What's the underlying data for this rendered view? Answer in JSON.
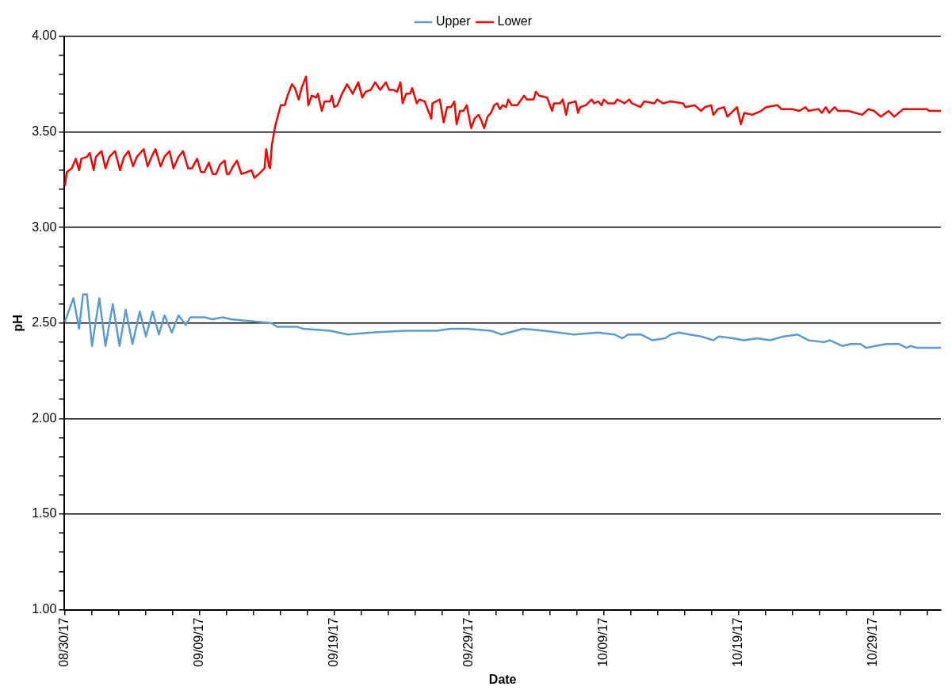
{
  "chart_data": {
    "type": "line",
    "xlabel": "Date",
    "ylabel": "pH",
    "legend": "top",
    "grid": "y",
    "marker": "none",
    "line_style": "solid",
    "xlim": [
      "--08-30",
      "--11-03"
    ],
    "ylim": [
      1,
      4
    ],
    "xticks": [
      {
        "value": "--08-30",
        "label": "08/30/17"
      },
      {
        "value": "--09-01",
        "label": null
      },
      {
        "value": "--09-03",
        "label": null
      },
      {
        "value": "--09-05",
        "label": null
      },
      {
        "value": "--09-07",
        "label": null
      },
      {
        "value": "--09-09",
        "label": "09/09/17"
      },
      {
        "value": "--09-11",
        "label": null
      },
      {
        "value": "--09-13",
        "label": null
      },
      {
        "value": "--09-15",
        "label": null
      },
      {
        "value": "--09-17",
        "label": null
      },
      {
        "value": "--09-19",
        "label": "09/19/17"
      },
      {
        "value": "--09-21",
        "label": null
      },
      {
        "value": "--09-23",
        "label": null
      },
      {
        "value": "--09-25",
        "label": null
      },
      {
        "value": "--09-27",
        "label": null
      },
      {
        "value": "--09-29",
        "label": "09/29/17"
      },
      {
        "value": "--10-01",
        "label": null
      },
      {
        "value": "--10-03",
        "label": null
      },
      {
        "value": "--10-05",
        "label": null
      },
      {
        "value": "--10-07",
        "label": null
      },
      {
        "value": "--10-09",
        "label": "10/09/17"
      },
      {
        "value": "--10-11",
        "label": null
      },
      {
        "value": "--10-13",
        "label": null
      },
      {
        "value": "--10-15",
        "label": null
      },
      {
        "value": "--10-17",
        "label": null
      },
      {
        "value": "--10-19",
        "label": "10/19/17"
      },
      {
        "value": "--10-21",
        "label": null
      },
      {
        "value": "--10-23",
        "label": null
      },
      {
        "value": "--10-25",
        "label": null
      },
      {
        "value": "--10-27",
        "label": null
      },
      {
        "value": "--10-29",
        "label": "10/29/17"
      },
      {
        "value": "--10-31",
        "label": null
      },
      {
        "value": "--11-02",
        "label": null
      }
    ],
    "yticks": [
      {
        "value": 1,
        "label": "1.00"
      },
      {
        "value": 1.1,
        "label": null
      },
      {
        "value": 1.2,
        "label": null
      },
      {
        "value": 1.3,
        "label": null
      },
      {
        "value": 1.4,
        "label": null
      },
      {
        "value": 1.5,
        "label": "1.50"
      },
      {
        "value": 1.6,
        "label": null
      },
      {
        "value": 1.7,
        "label": null
      },
      {
        "value": 1.8,
        "label": null
      },
      {
        "value": 1.9,
        "label": null
      },
      {
        "value": 2,
        "label": "2.00"
      },
      {
        "value": 2.1,
        "label": null
      },
      {
        "value": 2.2,
        "label": null
      },
      {
        "value": 2.3,
        "label": null
      },
      {
        "value": 2.4,
        "label": null
      },
      {
        "value": 2.5,
        "label": "2.50"
      },
      {
        "value": 2.6,
        "label": null
      },
      {
        "value": 2.7,
        "label": null
      },
      {
        "value": 2.8,
        "label": null
      },
      {
        "value": 2.9,
        "label": null
      },
      {
        "value": 3,
        "label": "3.00"
      },
      {
        "value": 3.1,
        "label": null
      },
      {
        "value": 3.2,
        "label": null
      },
      {
        "value": 3.3,
        "label": null
      },
      {
        "value": 3.4,
        "label": null
      },
      {
        "value": 3.5,
        "label": "3.50"
      },
      {
        "value": 3.6,
        "label": null
      },
      {
        "value": 3.7,
        "label": null
      },
      {
        "value": 3.8,
        "label": null
      },
      {
        "value": 3.9,
        "label": null
      },
      {
        "value": 4,
        "label": "4.00"
      }
    ],
    "series": [
      {
        "name": "Upper",
        "color": "#5b9bd5",
        "x": [
          "--08-30T01:00",
          "--08-30T16:00",
          "--08-31T02:00",
          "--08-31T09:00",
          "--08-31T16:00",
          "--09-01T01:00",
          "--09-01T14:00",
          "--09-02T01:00",
          "--09-02T14:00",
          "--09-03T02:00",
          "--09-03T13:00",
          "--09-04T01:00",
          "--09-04T14:00",
          "--09-05T01:00",
          "--09-05T13:00",
          "--09-06T00:00",
          "--09-06T10:00",
          "--09-06T23:00",
          "--09-07T11:00",
          "--09-08T00:00",
          "--09-08T08:00",
          "--09-09T10:00",
          "--09-09T23:00",
          "--09-10T18:00",
          "--09-11T08:00",
          "--09-12T17:00",
          "--09-14T08:00",
          "--09-14T19:00",
          "--09-16T07:00",
          "--09-16T17:00",
          "--09-18T17:00",
          "--09-20T00:00",
          "--09-21T19:00",
          "--09-24T05:00",
          "--09-26T14:00",
          "--09-27T15:00",
          "--09-28T20:00",
          "--09-30T15:00",
          "--10-01T10:00",
          "--10-03T00:00",
          "--10-04T14:00",
          "--10-06T19:00",
          "--10-08T14:00",
          "--10-09T19:00",
          "--10-10T09:00",
          "--10-10T19:00",
          "--10-11T18:00",
          "--10-12T14:00",
          "--10-13T13:00",
          "--10-13T23:00",
          "--10-14T14:00",
          "--10-15T08:00",
          "--10-16T05:00",
          "--10-17T03:00",
          "--10-17T13:00",
          "--10-18T14:00",
          "--10-19T09:00",
          "--10-20T09:00",
          "--10-21T08:00",
          "--10-22T08:00",
          "--10-23T09:00",
          "--10-24T04:00",
          "--10-25T08:00",
          "--10-25T18:00",
          "--10-26T16:00",
          "--10-27T08:00",
          "--10-28T01:00",
          "--10-28T11:00",
          "--10-29T03:00",
          "--10-29T23:00",
          "--10-30T22:00",
          "--10-31T11:00",
          "--10-31T18:00",
          "--11-01T06:00",
          "--11-03T00:00"
        ],
        "values": [
          2.51,
          2.63,
          2.47,
          2.65,
          2.65,
          2.38,
          2.63,
          2.38,
          2.6,
          2.38,
          2.57,
          2.39,
          2.56,
          2.43,
          2.56,
          2.44,
          2.54,
          2.45,
          2.54,
          2.49,
          2.53,
          2.53,
          2.52,
          2.53,
          2.52,
          2.51,
          2.5,
          2.48,
          2.48,
          2.47,
          2.46,
          2.44,
          2.45,
          2.46,
          2.46,
          2.47,
          2.47,
          2.46,
          2.44,
          2.47,
          2.46,
          2.44,
          2.45,
          2.44,
          2.42,
          2.44,
          2.44,
          2.41,
          2.42,
          2.44,
          2.45,
          2.44,
          2.43,
          2.41,
          2.43,
          2.42,
          2.41,
          2.42,
          2.41,
          2.43,
          2.44,
          2.41,
          2.4,
          2.41,
          2.38,
          2.39,
          2.39,
          2.37,
          2.38,
          2.39,
          2.39,
          2.37,
          2.38,
          2.37,
          2.37
        ]
      },
      {
        "name": "Lower",
        "color": "#ff0000",
        "x": [
          "--08-30T01:00",
          "--08-30T04:00",
          "--08-30T13:00",
          "--08-30T20:00",
          "--08-31T02:00",
          "--08-31T06:00",
          "--08-31T16:00",
          "--08-31T21:00",
          "--09-01T04:00",
          "--09-01T08:00",
          "--09-01T18:00",
          "--09-02T01:00",
          "--09-02T08:00",
          "--09-02T18:00",
          "--09-03T03:00",
          "--09-03T10:00",
          "--09-03T18:00",
          "--09-04T02:00",
          "--09-04T09:00",
          "--09-04T21:00",
          "--09-05T04:00",
          "--09-05T11:00",
          "--09-05T18:00",
          "--09-06T03:00",
          "--09-06T10:00",
          "--09-06T19:00",
          "--09-07T02:00",
          "--09-07T11:00",
          "--09-07T19:00",
          "--09-08T04:00",
          "--09-08T11:00",
          "--09-08T20:00",
          "--09-09T03:00",
          "--09-09T09:00",
          "--09-09T17:00",
          "--09-10T00:00",
          "--09-10T06:00",
          "--09-10T13:00",
          "--09-10T21:00",
          "--09-11T01:00",
          "--09-11T05:00",
          "--09-11T12:00",
          "--09-11T19:00",
          "--09-12T03:00",
          "--09-12T13:00",
          "--09-12T21:00",
          "--09-13T02:00",
          "--09-13T10:00",
          "--09-13T20:00",
          "--09-13T23:00",
          "--09-14T04:00",
          "--09-14T06:00",
          "--09-14T09:00",
          "--09-14T15:00",
          "--09-15T01:00",
          "--09-15T08:00",
          "--09-15T13:00",
          "--09-15T21:00",
          "--09-16T02:00",
          "--09-16T09:00",
          "--09-16T14:00",
          "--09-16T22:00",
          "--09-17T02:00",
          "--09-17T08:00",
          "--09-17T16:00",
          "--09-17T19:00",
          "--09-18T02:00",
          "--09-18T07:00",
          "--09-18T17:00",
          "--09-18T20:00",
          "--09-19T00:00",
          "--09-19T06:00",
          "--09-19T14:00",
          "--09-19T23:00",
          "--09-20T03:00",
          "--09-20T09:00",
          "--09-20T19:00",
          "--09-21T02:00",
          "--09-21T08:00",
          "--09-21T17:00",
          "--09-22T01:00",
          "--09-22T10:00",
          "--09-22T20:00",
          "--09-23T02:00",
          "--09-23T10:00",
          "--09-23T16:00",
          "--09-23T22:00",
          "--09-24T02:00",
          "--09-24T08:00",
          "--09-24T15:00",
          "--09-24T19:00",
          "--09-25T03:00",
          "--09-25T08:00",
          "--09-25T17:00",
          "--09-26T05:00",
          "--09-26T07:00",
          "--09-26T20:00",
          "--09-27T03:00",
          "--09-27T09:00",
          "--09-27T16:00",
          "--09-27T22:00",
          "--09-28T02:00",
          "--09-28T08:00",
          "--09-28T14:00",
          "--09-28T20:00",
          "--09-29T04:00",
          "--09-29T10:00",
          "--09-29T17:00",
          "--09-29T22:00",
          "--09-30T03:00",
          "--09-30T09:00",
          "--09-30T15:00",
          "--09-30T21:00",
          "--10-01T02:00",
          "--10-01T07:00",
          "--10-01T12:00",
          "--10-01T18:00",
          "--10-01T22:00",
          "--10-02T04:00",
          "--10-02T14:00",
          "--10-03T02:00",
          "--10-03T07:00",
          "--10-03T19:00",
          "--10-03T23:00",
          "--10-04T05:00",
          "--10-04T19:00",
          "--10-05T04:00",
          "--10-05T07:00",
          "--10-05T18:00",
          "--10-05T23:00",
          "--10-06T05:00",
          "--10-06T09:00",
          "--10-06T22:00",
          "--10-07T02:00",
          "--10-07T06:00",
          "--10-07T16:00",
          "--10-08T02:00",
          "--10-08T07:00",
          "--10-08T14:00",
          "--10-08T20:00",
          "--10-09T00:00",
          "--10-09T07:00",
          "--10-09T19:00",
          "--10-10T00:00",
          "--10-10T13:00",
          "--10-10T21:00",
          "--10-11T02:00",
          "--10-11T17:00",
          "--10-12T00:00",
          "--10-12T18:00",
          "--10-12T23:00",
          "--10-13T09:00",
          "--10-13T23:00",
          "--10-14T21:00",
          "--10-15T01:00",
          "--10-15T18:00",
          "--10-16T05:00",
          "--10-16T12:00",
          "--10-16T23:00",
          "--10-17T03:00",
          "--10-17T11:00",
          "--10-17T22:00",
          "--10-18T04:00",
          "--10-18T14:00",
          "--10-18T21:00",
          "--10-19T04:00",
          "--10-19T10:00",
          "--10-20T00:00",
          "--10-20T16:00",
          "--10-21T01:00",
          "--10-21T21:00",
          "--10-22T04:00",
          "--10-22T23:00",
          "--10-23T12:00",
          "--10-23T23:00",
          "--10-24T04:00",
          "--10-24T22:00",
          "--10-25T04:00",
          "--10-25T11:00",
          "--10-25T17:00",
          "--10-26T03:00",
          "--10-26T09:00",
          "--10-27T03:00",
          "--10-28T04:00",
          "--10-28T15:00",
          "--10-29T01:00",
          "--10-29T13:00",
          "--10-30T03:00",
          "--10-30T13:00",
          "--10-31T05:00",
          "--11-01T23:00",
          "--11-02T03:00",
          "--11-03T00:00"
        ],
        "values": [
          3.22,
          3.29,
          3.31,
          3.36,
          3.3,
          3.36,
          3.37,
          3.39,
          3.3,
          3.37,
          3.4,
          3.31,
          3.37,
          3.4,
          3.3,
          3.37,
          3.4,
          3.32,
          3.37,
          3.41,
          3.32,
          3.37,
          3.41,
          3.32,
          3.37,
          3.4,
          3.31,
          3.37,
          3.4,
          3.31,
          3.31,
          3.36,
          3.29,
          3.29,
          3.34,
          3.28,
          3.28,
          3.33,
          3.35,
          3.28,
          3.28,
          3.32,
          3.35,
          3.28,
          3.29,
          3.3,
          3.26,
          3.28,
          3.31,
          3.41,
          3.32,
          3.31,
          3.43,
          3.53,
          3.64,
          3.64,
          3.69,
          3.75,
          3.73,
          3.67,
          3.73,
          3.79,
          3.64,
          3.69,
          3.68,
          3.7,
          3.61,
          3.66,
          3.66,
          3.69,
          3.63,
          3.64,
          3.7,
          3.75,
          3.73,
          3.7,
          3.76,
          3.68,
          3.71,
          3.72,
          3.76,
          3.72,
          3.76,
          3.72,
          3.72,
          3.71,
          3.76,
          3.65,
          3.7,
          3.7,
          3.73,
          3.65,
          3.67,
          3.66,
          3.57,
          3.65,
          3.67,
          3.55,
          3.63,
          3.63,
          3.66,
          3.54,
          3.61,
          3.61,
          3.64,
          3.52,
          3.57,
          3.59,
          3.56,
          3.52,
          3.58,
          3.6,
          3.64,
          3.65,
          3.62,
          3.64,
          3.63,
          3.67,
          3.64,
          3.64,
          3.69,
          3.67,
          3.67,
          3.71,
          3.69,
          3.68,
          3.61,
          3.65,
          3.65,
          3.67,
          3.59,
          3.65,
          3.66,
          3.6,
          3.63,
          3.64,
          3.67,
          3.65,
          3.66,
          3.64,
          3.67,
          3.65,
          3.65,
          3.67,
          3.65,
          3.67,
          3.65,
          3.63,
          3.66,
          3.65,
          3.67,
          3.65,
          3.66,
          3.65,
          3.63,
          3.64,
          3.61,
          3.63,
          3.64,
          3.59,
          3.62,
          3.63,
          3.58,
          3.61,
          3.63,
          3.54,
          3.6,
          3.59,
          3.61,
          3.63,
          3.64,
          3.62,
          3.62,
          3.61,
          3.63,
          3.61,
          3.62,
          3.6,
          3.63,
          3.6,
          3.63,
          3.61,
          3.61,
          3.59,
          3.62,
          3.61,
          3.58,
          3.61,
          3.58,
          3.62,
          3.62,
          3.61,
          3.61
        ]
      }
    ]
  }
}
